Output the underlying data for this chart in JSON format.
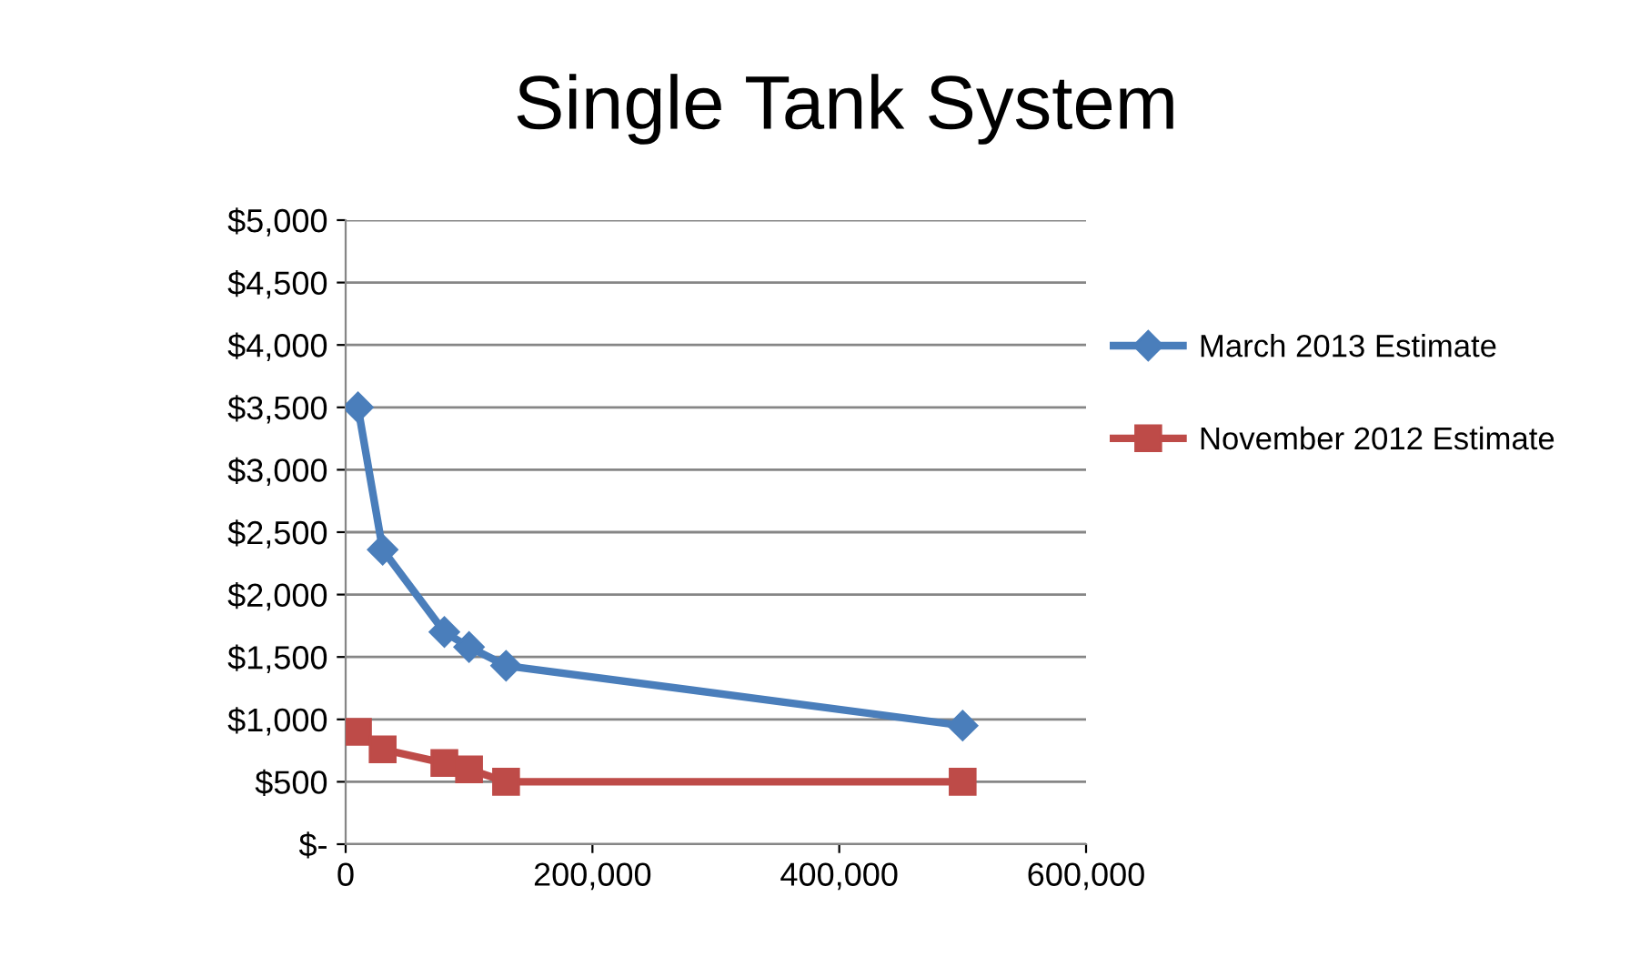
{
  "chart_data": {
    "type": "line",
    "title": "Single Tank System",
    "x": [
      10000,
      30000,
      80000,
      100000,
      130000,
      500000
    ],
    "series": [
      {
        "name": "March 2013 Estimate",
        "color": "#4a7ebb",
        "marker": "diamond",
        "values": [
          3500,
          2360,
          1700,
          1580,
          1430,
          950
        ]
      },
      {
        "name": "November 2012 Estimate",
        "color": "#be4b48",
        "marker": "square",
        "values": [
          900,
          760,
          650,
          600,
          500,
          500
        ]
      }
    ],
    "xlim": [
      0,
      600000
    ],
    "xticks": [
      0,
      {
        "value": 200000,
        "label": "200,000"
      },
      {
        "value": 400000,
        "label": "400,000"
      },
      {
        "value": 600000,
        "label": "600,000"
      }
    ],
    "ylim": [
      0,
      5000
    ],
    "yticks": [
      {
        "value": 0,
        "label": "$-"
      },
      {
        "value": 500,
        "label": "$500"
      },
      {
        "value": 1000,
        "label": "$1,000"
      },
      {
        "value": 1500,
        "label": "$1,500"
      },
      {
        "value": 2000,
        "label": "$2,000"
      },
      {
        "value": 2500,
        "label": "$2,500"
      },
      {
        "value": 3000,
        "label": "$3,000"
      },
      {
        "value": 3500,
        "label": "$3,500"
      },
      {
        "value": 4000,
        "label": "$4,000"
      },
      {
        "value": 4500,
        "label": "$4,500"
      },
      {
        "value": 5000,
        "label": "$5,000"
      }
    ],
    "grid": "y",
    "legend": "right"
  }
}
